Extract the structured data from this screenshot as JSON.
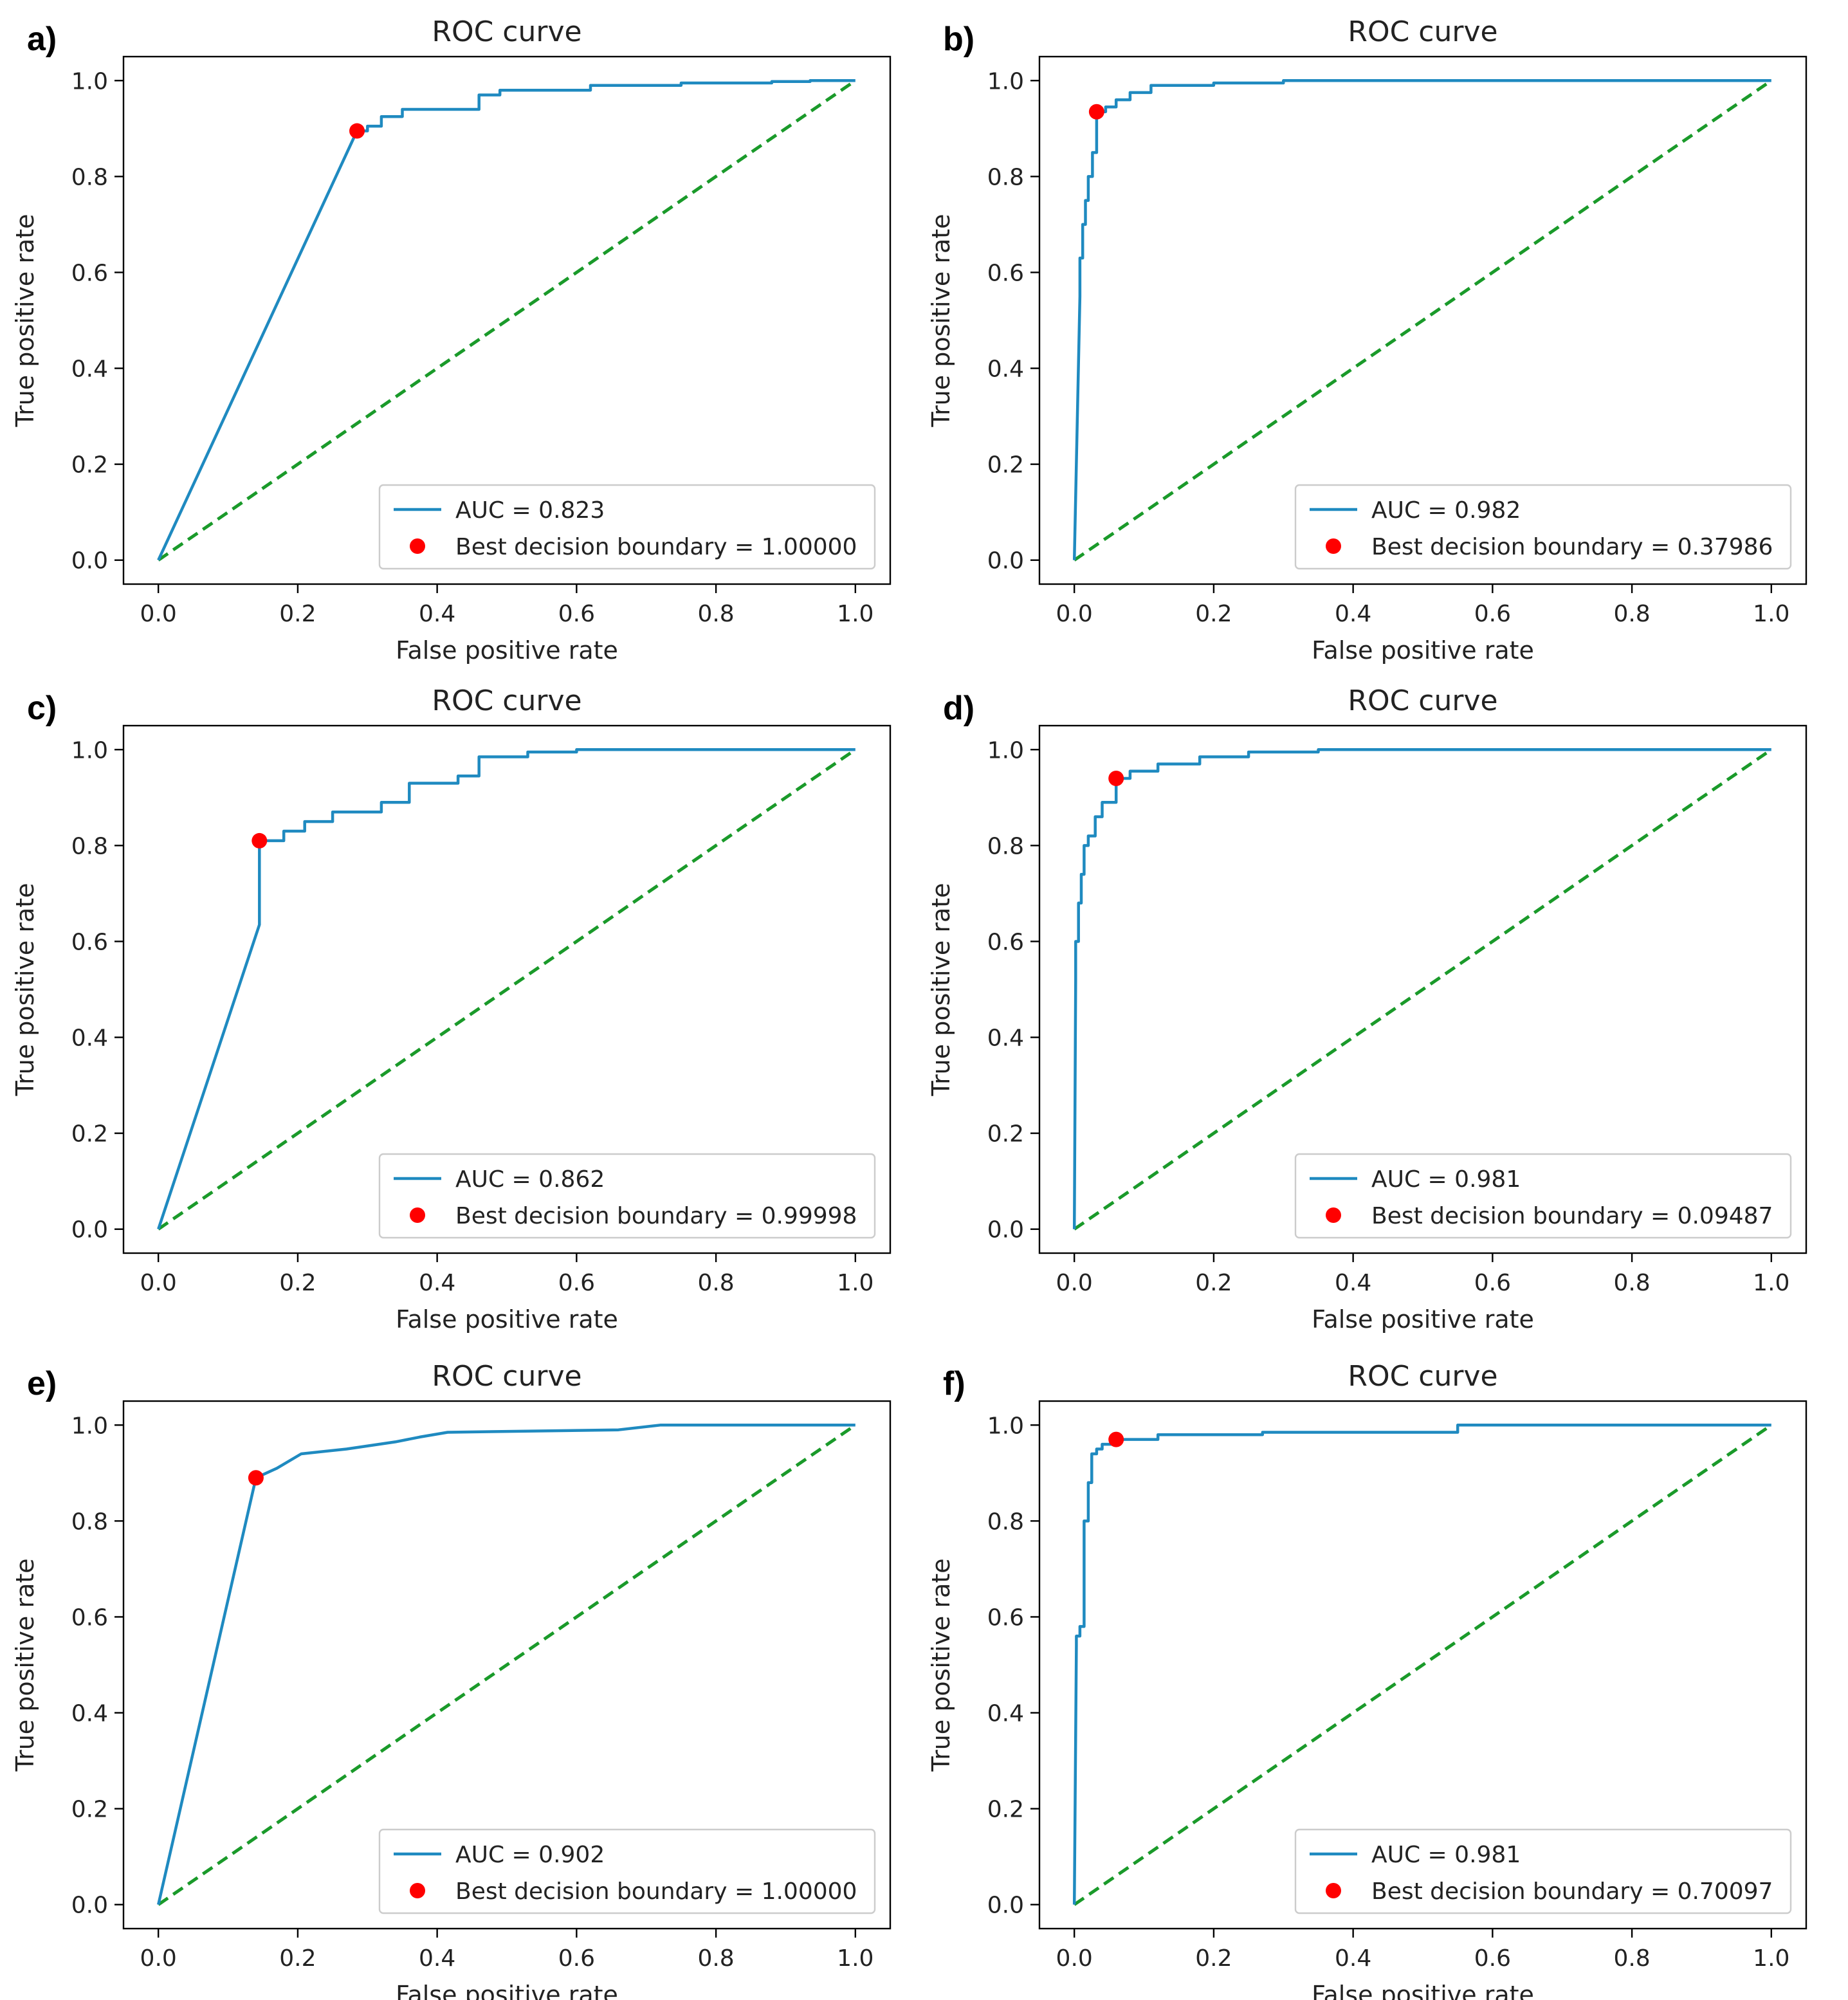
{
  "colors": {
    "roc_line": "#1f8ac0",
    "chance_line": "#1a9a2a",
    "best_point": "#ff0000",
    "axes": "#000000",
    "legend_border": "#cccccc"
  },
  "chart_data": [
    {
      "panel": "a)",
      "type": "line",
      "title": "ROC curve",
      "xlabel": "False positive rate",
      "ylabel": "True positive rate",
      "xlim": [
        -0.05,
        1.05
      ],
      "ylim": [
        -0.05,
        1.05
      ],
      "xticks": [
        "0.0",
        "0.2",
        "0.4",
        "0.6",
        "0.8",
        "1.0"
      ],
      "yticks": [
        "0.0",
        "0.2",
        "0.4",
        "0.6",
        "0.8",
        "1.0"
      ],
      "legend_location": "lower-right",
      "roc": {
        "name": "AUC = 0.823",
        "x": [
          0,
          0.285,
          0.3,
          0.3,
          0.32,
          0.32,
          0.35,
          0.35,
          0.46,
          0.46,
          0.49,
          0.49,
          0.62,
          0.62,
          0.75,
          0.75,
          0.88,
          0.88,
          0.935,
          0.935,
          1.0
        ],
        "y": [
          0,
          0.895,
          0.895,
          0.905,
          0.905,
          0.925,
          0.925,
          0.94,
          0.94,
          0.97,
          0.97,
          0.98,
          0.98,
          0.99,
          0.99,
          0.995,
          0.995,
          0.998,
          0.998,
          1.0,
          1.0
        ]
      },
      "best_point": {
        "name": "Best decision boundary = 1.00000",
        "x": 0.285,
        "y": 0.895
      },
      "chance": {
        "x": [
          0,
          1
        ],
        "y": [
          0,
          1
        ]
      }
    },
    {
      "panel": "b)",
      "type": "line",
      "title": "ROC curve",
      "xlabel": "False positive rate",
      "ylabel": "True positive rate",
      "xlim": [
        -0.05,
        1.05
      ],
      "ylim": [
        -0.05,
        1.05
      ],
      "xticks": [
        "0.0",
        "0.2",
        "0.4",
        "0.6",
        "0.8",
        "1.0"
      ],
      "yticks": [
        "0.0",
        "0.2",
        "0.4",
        "0.6",
        "0.8",
        "1.0"
      ],
      "legend_location": "lower-right",
      "roc": {
        "name": "AUC = 0.982",
        "x": [
          0,
          0.008,
          0.008,
          0.012,
          0.012,
          0.016,
          0.016,
          0.02,
          0.02,
          0.026,
          0.026,
          0.032,
          0.032,
          0.045,
          0.045,
          0.06,
          0.06,
          0.08,
          0.08,
          0.11,
          0.11,
          0.2,
          0.2,
          0.3,
          0.3,
          1.0
        ],
        "y": [
          0,
          0.55,
          0.63,
          0.63,
          0.7,
          0.7,
          0.75,
          0.75,
          0.8,
          0.8,
          0.85,
          0.85,
          0.935,
          0.935,
          0.945,
          0.945,
          0.96,
          0.96,
          0.975,
          0.975,
          0.99,
          0.99,
          0.995,
          0.995,
          1.0,
          1.0
        ]
      },
      "best_point": {
        "name": "Best decision boundary = 0.37986",
        "x": 0.032,
        "y": 0.935
      },
      "chance": {
        "x": [
          0,
          1
        ],
        "y": [
          0,
          1
        ]
      }
    },
    {
      "panel": "c)",
      "type": "line",
      "title": "ROC curve",
      "xlabel": "False positive rate",
      "ylabel": "True positive rate",
      "xlim": [
        -0.05,
        1.05
      ],
      "ylim": [
        -0.05,
        1.05
      ],
      "xticks": [
        "0.0",
        "0.2",
        "0.4",
        "0.6",
        "0.8",
        "1.0"
      ],
      "yticks": [
        "0.0",
        "0.2",
        "0.4",
        "0.6",
        "0.8",
        "1.0"
      ],
      "legend_location": "lower-right",
      "roc": {
        "name": "AUC = 0.862",
        "x": [
          0,
          0.145,
          0.145,
          0.18,
          0.18,
          0.21,
          0.21,
          0.25,
          0.25,
          0.28,
          0.28,
          0.32,
          0.32,
          0.36,
          0.36,
          0.39,
          0.39,
          0.43,
          0.43,
          0.46,
          0.46,
          0.53,
          0.53,
          0.6,
          0.6,
          1.0
        ],
        "y": [
          0,
          0.635,
          0.81,
          0.81,
          0.83,
          0.83,
          0.85,
          0.85,
          0.87,
          0.87,
          0.87,
          0.87,
          0.89,
          0.89,
          0.93,
          0.93,
          0.93,
          0.93,
          0.945,
          0.945,
          0.985,
          0.985,
          0.995,
          0.995,
          1.0,
          1.0
        ]
      },
      "best_point": {
        "name": "Best decision boundary = 0.99998",
        "x": 0.145,
        "y": 0.81
      },
      "chance": {
        "x": [
          0,
          1
        ],
        "y": [
          0,
          1
        ]
      }
    },
    {
      "panel": "d)",
      "type": "line",
      "title": "ROC curve",
      "xlabel": "False positive rate",
      "ylabel": "True positive rate",
      "xlim": [
        -0.05,
        1.05
      ],
      "ylim": [
        -0.05,
        1.05
      ],
      "xticks": [
        "0.0",
        "0.2",
        "0.4",
        "0.6",
        "0.8",
        "1.0"
      ],
      "yticks": [
        "0.0",
        "0.2",
        "0.4",
        "0.6",
        "0.8",
        "1.0"
      ],
      "legend_location": "lower-right",
      "roc": {
        "name": "AUC = 0.981",
        "x": [
          0,
          0.002,
          0.002,
          0.006,
          0.006,
          0.01,
          0.01,
          0.014,
          0.014,
          0.02,
          0.02,
          0.03,
          0.03,
          0.04,
          0.04,
          0.06,
          0.06,
          0.08,
          0.08,
          0.12,
          0.12,
          0.18,
          0.18,
          0.25,
          0.25,
          0.35,
          0.35,
          1.0
        ],
        "y": [
          0,
          0.52,
          0.6,
          0.6,
          0.68,
          0.68,
          0.74,
          0.74,
          0.8,
          0.8,
          0.82,
          0.82,
          0.86,
          0.86,
          0.89,
          0.89,
          0.94,
          0.94,
          0.955,
          0.955,
          0.97,
          0.97,
          0.985,
          0.985,
          0.995,
          0.995,
          1.0,
          1.0
        ]
      },
      "best_point": {
        "name": "Best decision boundary = 0.09487",
        "x": 0.06,
        "y": 0.94
      },
      "chance": {
        "x": [
          0,
          1
        ],
        "y": [
          0,
          1
        ]
      }
    },
    {
      "panel": "e)",
      "type": "line",
      "title": "ROC curve",
      "xlabel": "False positive rate",
      "ylabel": "True positive rate",
      "xlim": [
        -0.05,
        1.05
      ],
      "ylim": [
        -0.05,
        1.05
      ],
      "xticks": [
        "0.0",
        "0.2",
        "0.4",
        "0.6",
        "0.8",
        "1.0"
      ],
      "yticks": [
        "0.0",
        "0.2",
        "0.4",
        "0.6",
        "0.8",
        "1.0"
      ],
      "legend_location": "lower-right",
      "roc": {
        "name": "AUC = 0.902",
        "x": [
          0,
          0.14,
          0.14,
          0.17,
          0.17,
          0.205,
          0.205,
          0.27,
          0.27,
          0.34,
          0.34,
          0.375,
          0.375,
          0.415,
          0.415,
          0.66,
          0.66,
          0.72,
          0.72,
          1.0
        ],
        "y": [
          0,
          0.89,
          0.89,
          0.91,
          0.91,
          0.94,
          0.94,
          0.95,
          0.95,
          0.965,
          0.965,
          0.975,
          0.975,
          0.985,
          0.985,
          0.99,
          0.99,
          1.0,
          1.0,
          1.0
        ]
      },
      "best_point": {
        "name": "Best decision boundary = 1.00000",
        "x": 0.14,
        "y": 0.89
      },
      "chance": {
        "x": [
          0,
          1
        ],
        "y": [
          0,
          1
        ]
      }
    },
    {
      "panel": "f)",
      "type": "line",
      "title": "ROC curve",
      "xlabel": "False positive rate",
      "ylabel": "True positive rate",
      "xlim": [
        -0.05,
        1.05
      ],
      "ylim": [
        -0.05,
        1.05
      ],
      "xticks": [
        "0.0",
        "0.2",
        "0.4",
        "0.6",
        "0.8",
        "1.0"
      ],
      "yticks": [
        "0.0",
        "0.2",
        "0.4",
        "0.6",
        "0.8",
        "1.0"
      ],
      "legend_location": "lower-right",
      "roc": {
        "name": "AUC = 0.981",
        "x": [
          0,
          0.003,
          0.003,
          0.008,
          0.008,
          0.014,
          0.014,
          0.02,
          0.02,
          0.025,
          0.025,
          0.032,
          0.032,
          0.04,
          0.04,
          0.06,
          0.06,
          0.12,
          0.12,
          0.27,
          0.27,
          0.55,
          0.55,
          1.0
        ],
        "y": [
          0,
          0.54,
          0.56,
          0.56,
          0.58,
          0.58,
          0.8,
          0.8,
          0.88,
          0.88,
          0.94,
          0.94,
          0.95,
          0.95,
          0.96,
          0.96,
          0.97,
          0.97,
          0.98,
          0.98,
          0.985,
          0.985,
          1.0,
          1.0
        ]
      },
      "best_point": {
        "name": "Best decision boundary = 0.70097",
        "x": 0.06,
        "y": 0.97
      },
      "chance": {
        "x": [
          0,
          1
        ],
        "y": [
          0,
          1
        ]
      }
    }
  ]
}
